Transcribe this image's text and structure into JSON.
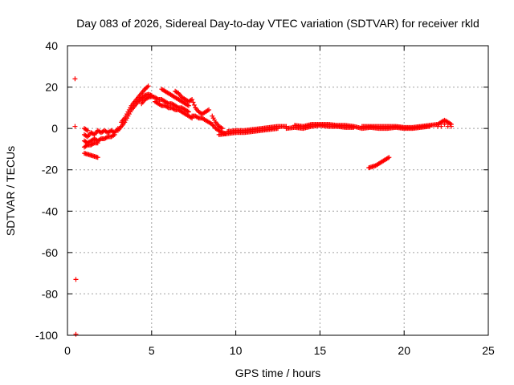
{
  "chart_data": {
    "type": "scatter",
    "title": "Day 083 of 2026, Sidereal Day-to-day VTEC variation (SDTVAR) for receiver rkld",
    "xlabel": "GPS time / hours",
    "ylabel": "SDTVAR / TECUs",
    "xlim": [
      0,
      25
    ],
    "ylim": [
      -100,
      40
    ],
    "xticks": [
      0,
      5,
      10,
      15,
      20,
      25
    ],
    "yticks": [
      -100,
      -80,
      -60,
      -40,
      -20,
      0,
      20,
      40
    ],
    "grid": true,
    "marker": "plus",
    "color": "#ff0000",
    "series": [
      {
        "name": "SDTVAR",
        "points": [
          [
            0.45,
            24
          ],
          [
            0.45,
            1
          ],
          [
            0.5,
            -73
          ],
          [
            0.5,
            -99.5
          ],
          [
            1.0,
            -3
          ],
          [
            1.2,
            -4
          ],
          [
            1.4,
            -2
          ],
          [
            1.6,
            -3
          ],
          [
            1.8,
            -1
          ],
          [
            2.0,
            -2
          ],
          [
            2.2,
            -1
          ],
          [
            2.4,
            -2
          ],
          [
            2.6,
            -1
          ],
          [
            2.8,
            -2
          ],
          [
            3.0,
            0
          ],
          [
            1.0,
            -6
          ],
          [
            1.2,
            -7
          ],
          [
            1.4,
            -6
          ],
          [
            1.6,
            -5
          ],
          [
            1.8,
            -6
          ],
          [
            2.0,
            -5
          ],
          [
            2.2,
            -5
          ],
          [
            2.4,
            -4
          ],
          [
            2.6,
            -4
          ],
          [
            2.8,
            -3
          ],
          [
            1.0,
            -9
          ],
          [
            1.2,
            -8
          ],
          [
            1.4,
            -8
          ],
          [
            1.6,
            -7
          ],
          [
            1.8,
            -7
          ],
          [
            1.0,
            0
          ],
          [
            1.2,
            -1
          ],
          [
            1.0,
            -12
          ],
          [
            1.2,
            -12.5
          ],
          [
            1.4,
            -13
          ],
          [
            1.6,
            -13.5
          ],
          [
            1.8,
            -14
          ],
          [
            3.0,
            -1
          ],
          [
            3.2,
            1
          ],
          [
            3.4,
            3
          ],
          [
            3.6,
            6
          ],
          [
            3.8,
            9
          ],
          [
            4.0,
            11
          ],
          [
            4.2,
            13
          ],
          [
            4.4,
            14.5
          ],
          [
            4.6,
            16
          ],
          [
            4.8,
            16.5
          ],
          [
            5.0,
            16
          ],
          [
            3.2,
            3
          ],
          [
            3.4,
            5
          ],
          [
            3.6,
            8
          ],
          [
            3.8,
            11
          ],
          [
            4.0,
            13
          ],
          [
            4.2,
            15
          ],
          [
            4.4,
            17
          ],
          [
            4.6,
            19
          ],
          [
            4.8,
            20.5
          ],
          [
            4.4,
            12
          ],
          [
            4.6,
            14
          ],
          [
            4.8,
            15
          ],
          [
            5.0,
            15.5
          ],
          [
            5.2,
            15
          ],
          [
            5.4,
            14
          ],
          [
            5.6,
            14
          ],
          [
            5.8,
            13
          ],
          [
            6.0,
            12
          ],
          [
            6.2,
            12
          ],
          [
            6.4,
            11
          ],
          [
            6.6,
            10
          ],
          [
            6.8,
            10
          ],
          [
            7.0,
            9
          ],
          [
            7.2,
            8
          ],
          [
            5.2,
            13
          ],
          [
            5.4,
            12
          ],
          [
            5.6,
            11
          ],
          [
            5.8,
            11
          ],
          [
            6.0,
            10
          ],
          [
            6.2,
            10
          ],
          [
            6.4,
            9
          ],
          [
            6.6,
            9
          ],
          [
            6.8,
            8
          ],
          [
            7.0,
            7
          ],
          [
            7.2,
            6
          ],
          [
            7.4,
            5
          ],
          [
            5.6,
            19
          ],
          [
            5.8,
            18
          ],
          [
            6.0,
            17
          ],
          [
            6.2,
            16
          ],
          [
            6.4,
            15
          ],
          [
            6.6,
            14
          ],
          [
            6.8,
            13
          ],
          [
            7.0,
            12
          ],
          [
            7.2,
            11
          ],
          [
            6.4,
            18
          ],
          [
            6.6,
            17
          ],
          [
            6.8,
            15
          ],
          [
            7.0,
            14
          ],
          [
            7.2,
            13
          ],
          [
            7.4,
            14
          ],
          [
            7.6,
            10
          ],
          [
            7.8,
            8
          ],
          [
            8.0,
            7
          ],
          [
            8.2,
            8
          ],
          [
            8.4,
            9
          ],
          [
            7.4,
            6
          ],
          [
            7.6,
            6
          ],
          [
            7.8,
            5
          ],
          [
            8.0,
            5
          ],
          [
            8.2,
            4
          ],
          [
            8.4,
            3
          ],
          [
            8.6,
            2
          ],
          [
            8.8,
            0
          ],
          [
            9.0,
            -1
          ],
          [
            9.2,
            -2
          ],
          [
            9.4,
            -2.5
          ],
          [
            8.6,
            6
          ],
          [
            8.8,
            3
          ],
          [
            9.0,
            1
          ],
          [
            9.2,
            0
          ],
          [
            9.0,
            -3
          ],
          [
            9.5,
            -2.5
          ],
          [
            10.0,
            -2
          ],
          [
            10.5,
            -2
          ],
          [
            11.0,
            -1.5
          ],
          [
            11.5,
            -1
          ],
          [
            12.0,
            -0.5
          ],
          [
            12.5,
            0
          ],
          [
            9.5,
            -1.5
          ],
          [
            10.0,
            -1
          ],
          [
            10.5,
            -1
          ],
          [
            11.0,
            -0.5
          ],
          [
            11.5,
            0
          ],
          [
            12.0,
            0.5
          ],
          [
            12.5,
            1
          ],
          [
            13.0,
            1
          ],
          [
            13.0,
            0
          ],
          [
            13.5,
            0.5
          ],
          [
            14.0,
            0
          ],
          [
            14.5,
            1
          ],
          [
            15.0,
            1.5
          ],
          [
            15.5,
            1
          ],
          [
            16.0,
            1
          ],
          [
            16.5,
            0.5
          ],
          [
            17.0,
            0.5
          ],
          [
            13.5,
            1.5
          ],
          [
            14.0,
            1
          ],
          [
            14.5,
            2
          ],
          [
            15.0,
            2
          ],
          [
            15.5,
            2
          ],
          [
            16.0,
            1.5
          ],
          [
            16.5,
            1.5
          ],
          [
            17.0,
            1
          ],
          [
            17.5,
            0
          ],
          [
            18.0,
            0.5
          ],
          [
            18.5,
            0
          ],
          [
            19.0,
            0
          ],
          [
            19.5,
            0.5
          ],
          [
            20.0,
            0
          ],
          [
            20.5,
            0
          ],
          [
            21.0,
            0.5
          ],
          [
            21.5,
            1
          ],
          [
            17.5,
            1
          ],
          [
            18.0,
            1
          ],
          [
            18.5,
            1
          ],
          [
            19.0,
            1
          ],
          [
            19.5,
            1
          ],
          [
            20.0,
            0.5
          ],
          [
            20.5,
            0.5
          ],
          [
            21.0,
            1
          ],
          [
            21.5,
            1.5
          ],
          [
            22.0,
            2
          ],
          [
            22.2,
            3
          ],
          [
            22.4,
            4
          ],
          [
            22.6,
            3
          ],
          [
            22.8,
            2
          ],
          [
            22.8,
            1
          ],
          [
            22.6,
            1
          ],
          [
            22.4,
            2
          ],
          [
            22.2,
            1
          ],
          [
            22.0,
            1
          ],
          [
            17.9,
            -19
          ],
          [
            18.1,
            -18.5
          ],
          [
            18.3,
            -18
          ],
          [
            18.5,
            -17
          ],
          [
            18.7,
            -16
          ],
          [
            18.9,
            -15
          ],
          [
            19.1,
            -14
          ]
        ]
      }
    ]
  }
}
